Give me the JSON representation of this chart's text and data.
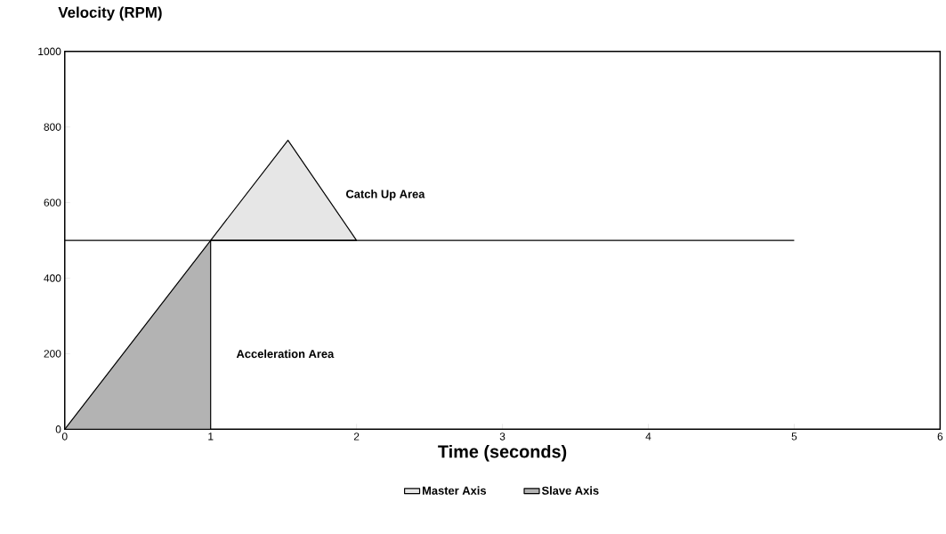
{
  "chart_data": {
    "type": "area",
    "title": "Velocity (RPM)",
    "xlabel": "Time (seconds)",
    "series": [
      {
        "name": "Master Axis",
        "color": "#e6e6e6",
        "x": [
          1,
          1.53,
          2
        ],
        "values": [
          500,
          765,
          500
        ]
      },
      {
        "name": "Slave Axis",
        "color": "#b3b3b3",
        "x": [
          0,
          1,
          1
        ],
        "values": [
          0,
          500,
          0
        ]
      },
      {
        "type": "line",
        "color": "#000000",
        "x": [
          0,
          5
        ],
        "values": [
          500,
          500
        ]
      }
    ],
    "annotations": [
      "Catch Up Area",
      "Acceleration Area"
    ],
    "xlim": [
      0,
      6
    ],
    "ylim": [
      0,
      1000
    ],
    "xticks": [
      0,
      1,
      2,
      3,
      4,
      5,
      6
    ],
    "yticks": [
      0,
      200,
      400,
      600,
      800,
      1000
    ],
    "grid": false,
    "legend": "bottom",
    "marker": "none",
    "line_style": "solid"
  }
}
